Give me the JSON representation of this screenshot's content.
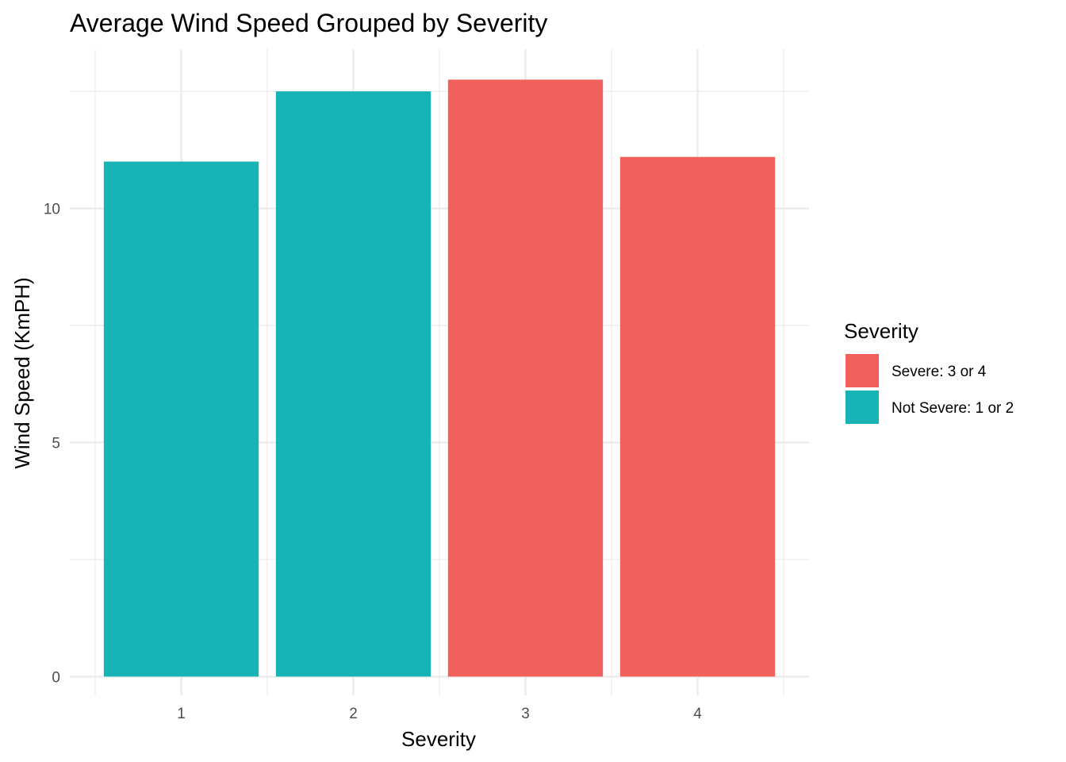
{
  "chart_data": {
    "type": "bar",
    "title": "Average Wind Speed Grouped by Severity",
    "xlabel": "Severity",
    "ylabel": "Wind Speed (KmPH)",
    "categories": [
      "1",
      "2",
      "3",
      "4"
    ],
    "values": [
      11.0,
      12.5,
      12.75,
      11.1
    ],
    "bar_groups": [
      "Not Severe: 1 or 2",
      "Not Severe: 1 or 2",
      "Severe: 3 or 4",
      "Severe: 3 or 4"
    ],
    "y_ticks": [
      0,
      5,
      10
    ],
    "y_tick_labels": [
      "0",
      "5",
      "10"
    ],
    "ylim": [
      -0.4,
      13.4
    ],
    "grid": true,
    "legend": {
      "title": "Severity",
      "placement": "right",
      "entries": [
        {
          "label": "Severe: 3 or 4",
          "color": "#F2605C"
        },
        {
          "label": "Not Severe: 1 or 2",
          "color": "#18B3B7"
        }
      ]
    }
  }
}
